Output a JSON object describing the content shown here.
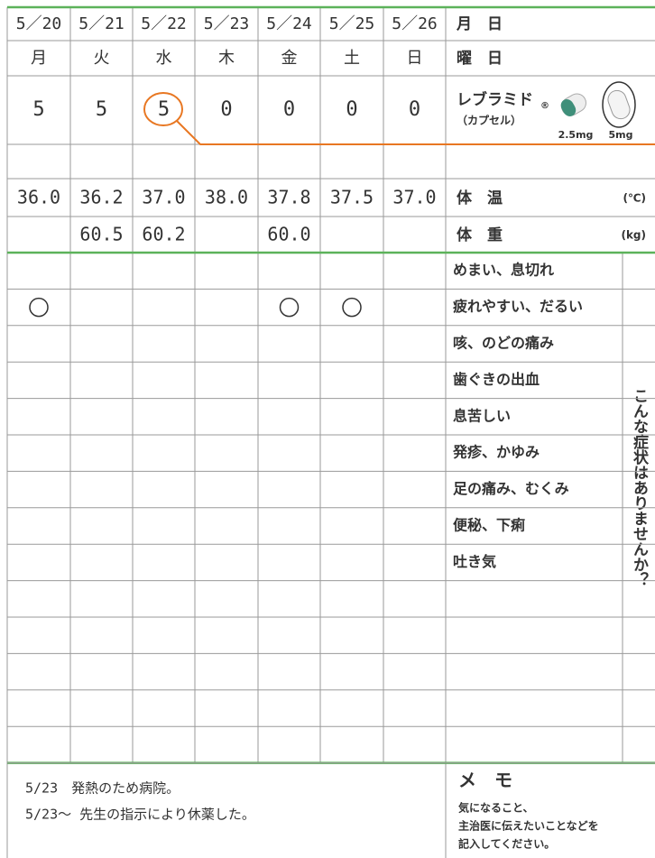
{
  "header": {
    "dates": [
      "5／20",
      "5／21",
      "5／22",
      "5／23",
      "5／24",
      "5／25",
      "5／26"
    ],
    "date_label": "月　日",
    "weekdays": [
      "月",
      "火",
      "水",
      "木",
      "金",
      "土",
      "日"
    ],
    "weekday_label": "曜　日"
  },
  "dose": {
    "values": [
      "5",
      "5",
      "5",
      "0",
      "0",
      "0",
      "0"
    ],
    "drug_name": "レブラミド",
    "registered": "®",
    "form": "（カプセル）",
    "strengths": [
      "2.5mg",
      "5mg"
    ]
  },
  "temperature": {
    "label": "体　温",
    "unit": "(℃)",
    "values": [
      "36.0",
      "36.2",
      "37.0",
      "38.0",
      "37.8",
      "37.5",
      "37.0"
    ]
  },
  "weight": {
    "label": "体　重",
    "unit": "(kg)",
    "values": [
      null,
      "60.5",
      "60.2",
      null,
      "60.0",
      null,
      null
    ]
  },
  "symptoms": {
    "side_label": "こんな症状はありませんか？",
    "rows": [
      {
        "label": "めまい、息切れ",
        "days": [
          false,
          false,
          false,
          false,
          false,
          false,
          false
        ]
      },
      {
        "label": "疲れやすい、だるい",
        "days": [
          true,
          false,
          false,
          false,
          true,
          true,
          false
        ]
      },
      {
        "label": "咳、のどの痛み",
        "days": [
          false,
          false,
          false,
          false,
          false,
          false,
          false
        ]
      },
      {
        "label": "歯ぐきの出血",
        "days": [
          false,
          false,
          false,
          false,
          false,
          false,
          false
        ]
      },
      {
        "label": "息苦しい",
        "days": [
          false,
          false,
          false,
          false,
          false,
          false,
          false
        ]
      },
      {
        "label": "発疹、かゆみ",
        "days": [
          false,
          false,
          false,
          false,
          false,
          false,
          false
        ]
      },
      {
        "label": "足の痛み、むくみ",
        "days": [
          false,
          false,
          false,
          false,
          false,
          false,
          false
        ]
      },
      {
        "label": "便秘、下痢",
        "days": [
          false,
          false,
          false,
          false,
          false,
          false,
          false
        ]
      },
      {
        "label": "吐き気",
        "days": [
          false,
          false,
          false,
          false,
          false,
          false,
          false
        ]
      }
    ]
  },
  "memo": {
    "lines": [
      "5/23　発熱のため病院。",
      "5/23～ 先生の指示により休薬した。"
    ],
    "title": "メ　モ",
    "instructions": [
      "気になること、",
      "主治医に伝えたいことなどを",
      "記入してください。"
    ]
  }
}
